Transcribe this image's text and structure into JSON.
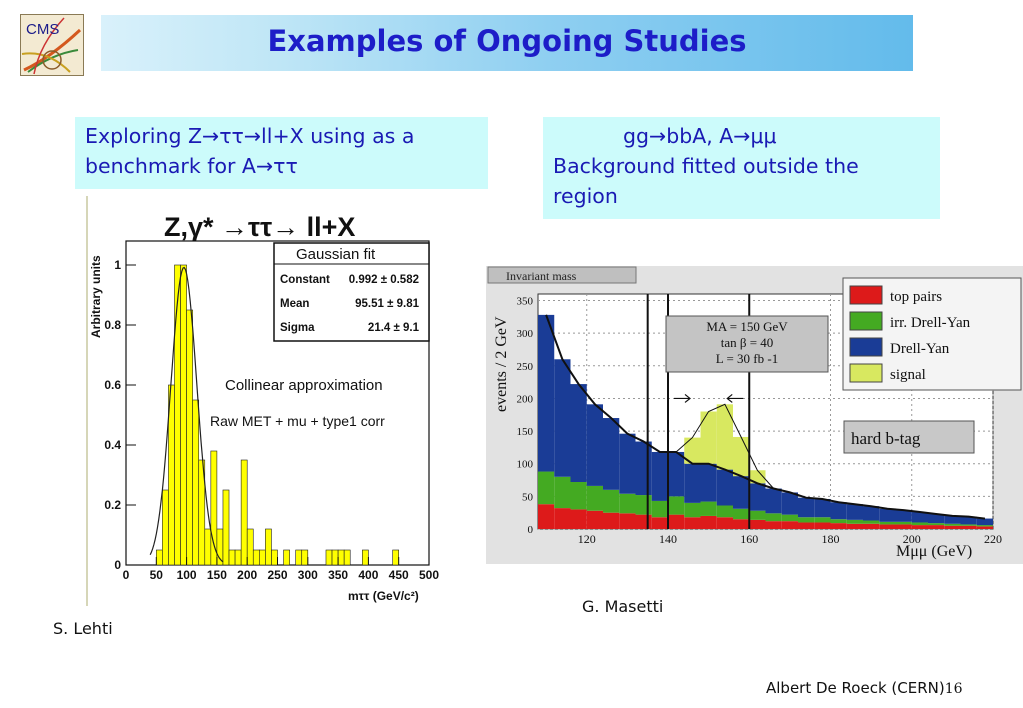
{
  "logo": {
    "text": "CMS"
  },
  "title": "Examples of Ongoing Studies",
  "box_left": {
    "line1": "Exploring Z→ττ→ll+X using as a",
    "line2": "benchmark for A→ττ"
  },
  "box_right": {
    "line1": "gg→bbA, A→μμ",
    "line2": "Background fitted outside the",
    "line3": "region"
  },
  "credit_left": "S. Lehti",
  "credit_right": "G. Masetti",
  "footer": {
    "author": "Albert De Roeck (CERN)",
    "page": "16"
  },
  "chart_data": [
    {
      "type": "bar",
      "title": "Z,γ* →ττ→ ll+X",
      "xlabel": "mττ (GeV/c²)",
      "ylabel": "Arbitrary units",
      "xlim": [
        0,
        500
      ],
      "ylim": [
        0,
        1.08
      ],
      "xticks": [
        "0",
        "50",
        "100",
        "150",
        "200",
        "250",
        "300",
        "350",
        "400",
        "450",
        "500"
      ],
      "yticks": [
        "0",
        "0.2",
        "0.4",
        "0.6",
        "0.8",
        "1"
      ],
      "bin_width": 10,
      "bins_x": [
        50,
        60,
        70,
        80,
        90,
        100,
        110,
        120,
        130,
        140,
        150,
        160,
        170,
        180,
        190,
        200,
        210,
        220,
        230,
        240,
        250,
        260,
        270,
        280,
        290,
        300,
        310,
        320,
        330,
        340,
        350,
        360,
        370,
        380,
        390,
        400,
        410,
        420,
        430,
        440,
        450,
        460,
        470,
        480,
        490
      ],
      "values": [
        0.05,
        0.25,
        0.6,
        1.0,
        1.0,
        0.85,
        0.55,
        0.35,
        0.12,
        0.38,
        0.12,
        0.25,
        0.05,
        0.05,
        0.35,
        0.12,
        0.05,
        0.05,
        0.12,
        0.05,
        0.0,
        0.05,
        0.0,
        0.05,
        0.05,
        0.0,
        0.0,
        0.0,
        0.05,
        0.05,
        0.05,
        0.05,
        0.0,
        0.0,
        0.05,
        0.0,
        0.0,
        0.0,
        0.0,
        0.05,
        0.0,
        0.0,
        0.0,
        0.0,
        0.0
      ],
      "fit": {
        "name": "Gaussian fit",
        "constant": "0.992 ± 0.582",
        "mean": "95.51 ± 9.81",
        "sigma": "21.4 ± 9.1",
        "constant_value": 0.992,
        "mean_value": 95.51,
        "sigma_value": 21.4
      },
      "stats_labels": {
        "header": "Gaussian fit",
        "constant": "Constant",
        "mean": "Mean",
        "sigma": "Sigma"
      },
      "annotations": [
        "Collinear approximation",
        "Raw MET + mu + type1 corr"
      ],
      "colors": {
        "bars": "#ffff00",
        "bar_edge": "#222222",
        "fit": "#222222"
      }
    },
    {
      "type": "area",
      "panel_label": "Invariant mass",
      "xlabel": "Mμμ (GeV)",
      "ylabel": "events / 2 GeV",
      "xlim": [
        108,
        220
      ],
      "ylim": [
        0,
        360
      ],
      "xticks": [
        "120",
        "140",
        "160",
        "180",
        "200",
        "220"
      ],
      "yticks": [
        "0",
        "50",
        "100",
        "150",
        "200",
        "250",
        "300",
        "350"
      ],
      "x": [
        110,
        114,
        118,
        122,
        126,
        130,
        134,
        138,
        142,
        146,
        150,
        154,
        158,
        162,
        166,
        170,
        174,
        178,
        182,
        186,
        190,
        194,
        198,
        202,
        206,
        210,
        214,
        218
      ],
      "series": [
        {
          "name": "top pairs",
          "values": [
            38,
            32,
            30,
            28,
            25,
            24,
            22,
            18,
            22,
            18,
            20,
            18,
            15,
            14,
            12,
            12,
            10,
            10,
            9,
            8,
            8,
            7,
            7,
            6,
            6,
            5,
            5,
            4
          ]
        },
        {
          "name": "irr. Drell-Yan",
          "values": [
            50,
            48,
            42,
            38,
            35,
            30,
            30,
            25,
            28,
            22,
            22,
            18,
            16,
            14,
            12,
            10,
            8,
            8,
            6,
            6,
            5,
            4,
            4,
            4,
            3,
            3,
            2,
            2
          ]
        },
        {
          "name": "Drell-Yan",
          "values": [
            240,
            180,
            150,
            125,
            110,
            92,
            82,
            75,
            68,
            60,
            58,
            55,
            50,
            42,
            38,
            34,
            30,
            28,
            26,
            24,
            22,
            20,
            18,
            16,
            14,
            12,
            12,
            10
          ]
        },
        {
          "name": "signal",
          "values": [
            0,
            0,
            0,
            0,
            0,
            0,
            0,
            0,
            0,
            40,
            80,
            100,
            60,
            20,
            0,
            0,
            0,
            0,
            0,
            0,
            0,
            0,
            0,
            0,
            0,
            0,
            0,
            0
          ]
        }
      ],
      "annotations": [
        "MA = 150 GeV",
        "tan β = 40",
        "L = 30 fb -1",
        "hard b-tag"
      ],
      "window_lines_x": [
        135,
        140,
        160
      ],
      "colors": {
        "top pairs": "#dd1a1a",
        "irr. Drell-Yan": "#44aa22",
        "Drell-Yan": "#1a3c96",
        "signal": "#d8e860"
      }
    }
  ]
}
